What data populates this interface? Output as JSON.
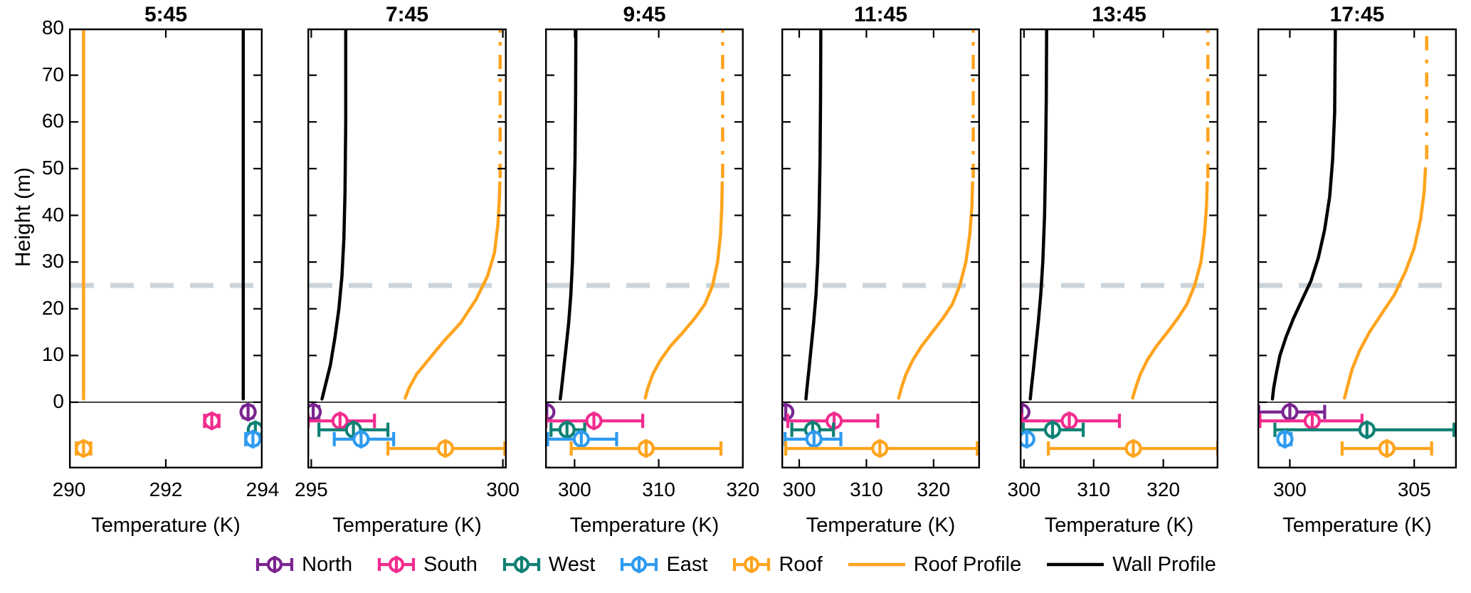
{
  "labels": {
    "x_axis": "Temperature (K)",
    "y_axis": "Height (m)"
  },
  "colors": {
    "north": "#7A2590",
    "south": "#F22C8F",
    "west": "#0E8174",
    "east": "#2E9BF0",
    "roof": "#FFA41E",
    "roof_profile": "#FFA41E",
    "wall_profile": "#000000",
    "building_line": "#CBD4DA",
    "zero_line": "#444444",
    "axis": "#000000"
  },
  "legend": {
    "items": [
      {
        "label": "North",
        "type": "errorbar",
        "color_key": "north"
      },
      {
        "label": "South",
        "type": "errorbar",
        "color_key": "south"
      },
      {
        "label": "West",
        "type": "errorbar",
        "color_key": "west"
      },
      {
        "label": "East",
        "type": "errorbar",
        "color_key": "east"
      },
      {
        "label": "Roof",
        "type": "errorbar",
        "color_key": "roof"
      },
      {
        "label": "Roof Profile",
        "type": "line",
        "color_key": "roof_profile"
      },
      {
        "label": "Wall Profile",
        "type": "line",
        "color_key": "wall_profile"
      }
    ]
  },
  "chart_data": {
    "type": "line",
    "ylabel": "Height (m)",
    "xlabel": "Temperature (K)",
    "ylim": [
      -14.2,
      80
    ],
    "yticks": [
      0,
      10,
      20,
      30,
      40,
      50,
      60,
      70,
      80
    ],
    "building_height_line_m": 25.0,
    "marker_row_heights_m": {
      "North": -2.1,
      "South": -4.0,
      "West": -5.9,
      "East": -7.9,
      "Roof": -9.9
    },
    "panels": [
      {
        "title": "5:45",
        "xlim": [
          290,
          294
        ],
        "xticks": [
          290,
          292,
          294
        ],
        "wall_profile": [
          [
            293.6,
            0.7
          ],
          [
            293.6,
            80
          ]
        ],
        "roof_solid": [
          [
            290.3,
            0.7
          ],
          [
            290.3,
            80
          ]
        ],
        "roof_dashed": null,
        "markers": [
          {
            "series": "North",
            "T": 293.7,
            "lo": 293.6,
            "hi": 293.8
          },
          {
            "series": "South",
            "T": 292.95,
            "lo": 292.8,
            "hi": 293.1
          },
          {
            "series": "West",
            "T": 293.85,
            "lo": 293.75,
            "hi": 293.95
          },
          {
            "series": "East",
            "T": 293.8,
            "lo": 293.65,
            "hi": 293.9
          },
          {
            "series": "Roof",
            "T": 290.3,
            "lo": 290.15,
            "hi": 290.45
          }
        ]
      },
      {
        "title": "7:45",
        "xlim": [
          294.9,
          300.1
        ],
        "xticks": [
          295,
          300
        ],
        "wall_profile": [
          [
            295.28,
            0.7
          ],
          [
            295.35,
            3
          ],
          [
            295.5,
            8
          ],
          [
            295.62,
            14
          ],
          [
            295.72,
            20
          ],
          [
            295.8,
            27
          ],
          [
            295.85,
            35
          ],
          [
            295.88,
            45
          ],
          [
            295.9,
            60
          ],
          [
            295.9,
            80
          ]
        ],
        "roof_solid": [
          [
            297.45,
            0.9
          ],
          [
            297.55,
            3
          ],
          [
            297.75,
            6
          ],
          [
            298.05,
            9
          ],
          [
            298.45,
            13
          ],
          [
            298.9,
            17
          ],
          [
            299.3,
            22
          ],
          [
            299.6,
            27
          ],
          [
            299.78,
            32
          ],
          [
            299.87,
            38
          ],
          [
            299.91,
            44
          ],
          [
            299.92,
            47
          ]
        ],
        "roof_dashed": [
          [
            299.93,
            48
          ],
          [
            299.93,
            80
          ]
        ],
        "markers": [
          {
            "series": "North",
            "T": 295.05,
            "lo": 294.92,
            "hi": 295.2
          },
          {
            "series": "South",
            "T": 295.75,
            "lo": 294.92,
            "hi": 296.65
          },
          {
            "series": "West",
            "T": 296.1,
            "lo": 295.2,
            "hi": 297.0
          },
          {
            "series": "East",
            "T": 296.3,
            "lo": 295.6,
            "hi": 297.15
          },
          {
            "series": "Roof",
            "T": 298.5,
            "lo": 297.0,
            "hi": 300.05
          }
        ]
      },
      {
        "title": "9:45",
        "xlim": [
          296.5,
          320.1
        ],
        "xticks": [
          300,
          310,
          320
        ],
        "wall_profile": [
          [
            298.3,
            0.7
          ],
          [
            298.45,
            3
          ],
          [
            298.7,
            7
          ],
          [
            299.0,
            12
          ],
          [
            299.3,
            17
          ],
          [
            299.55,
            23
          ],
          [
            299.75,
            30
          ],
          [
            299.9,
            40
          ],
          [
            300.05,
            52
          ],
          [
            300.12,
            65
          ],
          [
            300.15,
            80
          ]
        ],
        "roof_solid": [
          [
            308.4,
            0.9
          ],
          [
            308.7,
            3
          ],
          [
            309.3,
            6
          ],
          [
            310.2,
            9
          ],
          [
            311.4,
            12
          ],
          [
            312.9,
            15
          ],
          [
            314.3,
            18
          ],
          [
            315.5,
            21
          ],
          [
            316.4,
            25
          ],
          [
            317.0,
            30
          ],
          [
            317.35,
            36
          ],
          [
            317.5,
            42
          ],
          [
            317.55,
            47
          ]
        ],
        "roof_dashed": [
          [
            317.6,
            48
          ],
          [
            317.6,
            80
          ]
        ],
        "markers": [
          {
            "series": "North",
            "T": 296.7,
            "lo": 296.55,
            "hi": 296.9
          },
          {
            "series": "South",
            "T": 302.3,
            "lo": 296.6,
            "hi": 308.1
          },
          {
            "series": "West",
            "T": 299.1,
            "lo": 297.2,
            "hi": 301.2
          },
          {
            "series": "East",
            "T": 300.8,
            "lo": 296.8,
            "hi": 305.0
          },
          {
            "series": "Roof",
            "T": 308.5,
            "lo": 299.6,
            "hi": 317.4
          }
        ]
      },
      {
        "title": "11:45",
        "xlim": [
          297.35,
          326.9
        ],
        "xticks": [
          300,
          310,
          320
        ],
        "wall_profile": [
          [
            301.0,
            0.7
          ],
          [
            301.15,
            3
          ],
          [
            301.45,
            7
          ],
          [
            301.8,
            12
          ],
          [
            302.15,
            17
          ],
          [
            302.5,
            23
          ],
          [
            302.75,
            30
          ],
          [
            302.95,
            40
          ],
          [
            303.1,
            52
          ],
          [
            303.18,
            65
          ],
          [
            303.22,
            80
          ]
        ],
        "roof_solid": [
          [
            314.8,
            0.9
          ],
          [
            315.2,
            3
          ],
          [
            315.9,
            6
          ],
          [
            316.9,
            9
          ],
          [
            318.2,
            12
          ],
          [
            319.8,
            15
          ],
          [
            321.4,
            18
          ],
          [
            322.8,
            21
          ],
          [
            323.9,
            25
          ],
          [
            324.8,
            30
          ],
          [
            325.4,
            36
          ],
          [
            325.7,
            42
          ],
          [
            325.8,
            47
          ]
        ],
        "roof_dashed": [
          [
            325.9,
            48
          ],
          [
            325.9,
            80
          ]
        ],
        "markers": [
          {
            "series": "North",
            "T": 298.0,
            "lo": 297.8,
            "hi": 298.2
          },
          {
            "series": "South",
            "T": 305.2,
            "lo": 298.3,
            "hi": 311.7
          },
          {
            "series": "West",
            "T": 302.0,
            "lo": 298.9,
            "hi": 305.1
          },
          {
            "series": "East",
            "T": 302.2,
            "lo": 297.9,
            "hi": 306.2
          },
          {
            "series": "Roof",
            "T": 312.0,
            "lo": 298.0,
            "hi": 326.5
          }
        ]
      },
      {
        "title": "13:45",
        "xlim": [
          299.4,
          327.9
        ],
        "xticks": [
          300,
          310,
          320
        ],
        "wall_profile": [
          [
            300.9,
            0.7
          ],
          [
            301.05,
            3
          ],
          [
            301.35,
            7
          ],
          [
            301.7,
            12
          ],
          [
            302.05,
            17
          ],
          [
            302.4,
            23
          ],
          [
            302.7,
            30
          ],
          [
            302.95,
            40
          ],
          [
            303.1,
            52
          ],
          [
            303.2,
            65
          ],
          [
            303.25,
            80
          ]
        ],
        "roof_solid": [
          [
            315.6,
            0.9
          ],
          [
            316.0,
            3
          ],
          [
            316.7,
            6
          ],
          [
            317.7,
            9
          ],
          [
            319.0,
            12
          ],
          [
            320.6,
            15
          ],
          [
            322.1,
            18
          ],
          [
            323.4,
            21
          ],
          [
            324.5,
            25
          ],
          [
            325.4,
            30
          ],
          [
            325.9,
            36
          ],
          [
            326.2,
            42
          ],
          [
            326.3,
            47
          ]
        ],
        "roof_dashed": [
          [
            326.4,
            48
          ],
          [
            326.4,
            80
          ]
        ],
        "markers": [
          {
            "series": "North",
            "T": 299.7,
            "lo": 299.5,
            "hi": 299.9
          },
          {
            "series": "South",
            "T": 306.5,
            "lo": 299.7,
            "hi": 313.7
          },
          {
            "series": "West",
            "T": 304.1,
            "lo": 299.9,
            "hi": 308.5
          },
          {
            "series": "East",
            "T": 300.4,
            "lo": 300.1,
            "hi": 300.7
          },
          {
            "series": "Roof",
            "T": 315.7,
            "lo": 303.5,
            "hi": 327.8
          }
        ]
      },
      {
        "title": "17:45",
        "xlim": [
          298.7,
          306.71
        ],
        "xticks": [
          300,
          305
        ],
        "wall_profile": [
          [
            299.3,
            0.7
          ],
          [
            299.35,
            3
          ],
          [
            299.45,
            6
          ],
          [
            299.6,
            10
          ],
          [
            299.85,
            14
          ],
          [
            300.15,
            18
          ],
          [
            300.5,
            22
          ],
          [
            300.85,
            26
          ],
          [
            301.15,
            31
          ],
          [
            301.4,
            37
          ],
          [
            301.6,
            44
          ],
          [
            301.72,
            52
          ],
          [
            301.8,
            62
          ],
          [
            301.83,
            80
          ]
        ],
        "roof_solid": [
          [
            302.2,
            0.9
          ],
          [
            302.3,
            3
          ],
          [
            302.5,
            7
          ],
          [
            302.8,
            11
          ],
          [
            303.2,
            15
          ],
          [
            303.7,
            19
          ],
          [
            304.2,
            23
          ],
          [
            304.65,
            28
          ],
          [
            305.0,
            33
          ],
          [
            305.25,
            39
          ],
          [
            305.4,
            45
          ],
          [
            305.45,
            50
          ]
        ],
        "roof_dashed": [
          [
            305.5,
            52
          ],
          [
            305.5,
            80
          ]
        ],
        "markers": [
          {
            "series": "North",
            "T": 300.0,
            "lo": 298.75,
            "hi": 301.4
          },
          {
            "series": "South",
            "T": 300.9,
            "lo": 298.8,
            "hi": 302.9
          },
          {
            "series": "West",
            "T": 303.1,
            "lo": 299.4,
            "hi": 306.6
          },
          {
            "series": "East",
            "T": 299.8,
            "lo": 299.6,
            "hi": 300.05
          },
          {
            "series": "Roof",
            "T": 303.9,
            "lo": 302.1,
            "hi": 305.7
          }
        ]
      }
    ]
  }
}
